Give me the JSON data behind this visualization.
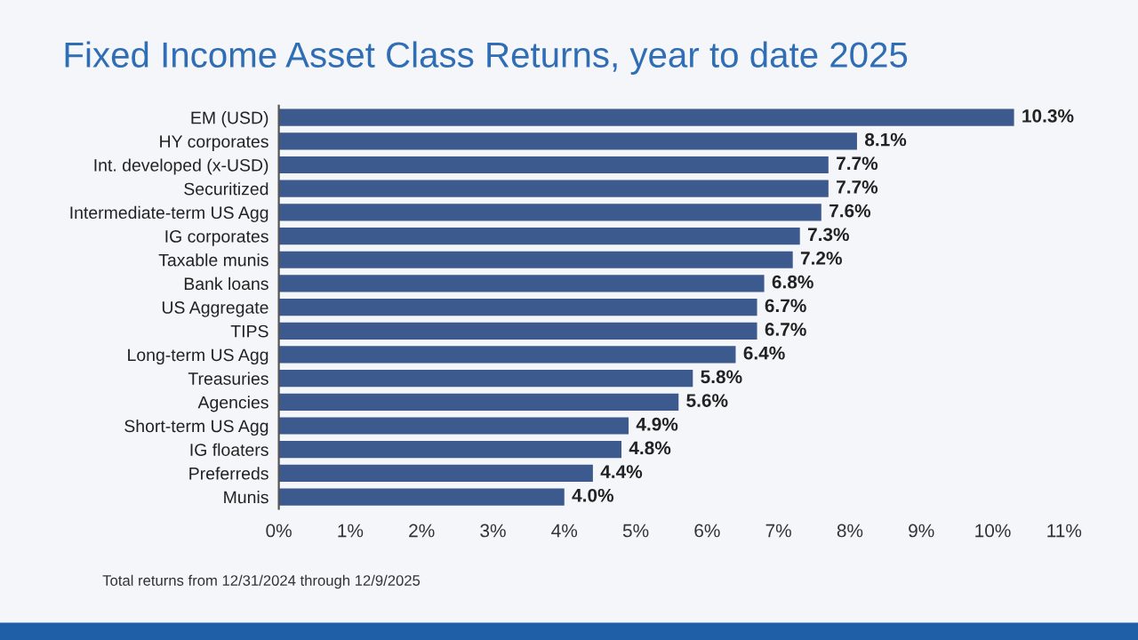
{
  "chart_data": {
    "type": "bar",
    "orientation": "horizontal",
    "title": "Fixed Income Asset Class Returns, year to date 2025",
    "categories": [
      "EM (USD)",
      "HY corporates",
      "Int. developed (x-USD)",
      "Securitized",
      "Intermediate-term US Agg",
      "IG corporates",
      "Taxable munis",
      "Bank loans",
      "US Aggregate",
      "TIPS",
      "Long-term US Agg",
      "Treasuries",
      "Agencies",
      "Short-term US Agg",
      "IG floaters",
      "Preferreds",
      "Munis"
    ],
    "values": [
      10.3,
      8.1,
      7.7,
      7.7,
      7.6,
      7.3,
      7.2,
      6.8,
      6.7,
      6.7,
      6.4,
      5.8,
      5.6,
      4.9,
      4.8,
      4.4,
      4.0
    ],
    "value_labels": [
      "10.3%",
      "8.1%",
      "7.7%",
      "7.7%",
      "7.6%",
      "7.3%",
      "7.2%",
      "6.8%",
      "6.7%",
      "6.7%",
      "6.4%",
      "5.8%",
      "5.6%",
      "4.9%",
      "4.8%",
      "4.4%",
      "4.0%"
    ],
    "color": "#3d5a8e",
    "xlim": [
      0,
      11
    ],
    "xticks": [
      {
        "value": 0,
        "label": "0%"
      },
      {
        "value": 1,
        "label": "1%"
      },
      {
        "value": 2,
        "label": "2%"
      },
      {
        "value": 3,
        "label": "3%"
      },
      {
        "value": 4,
        "label": "4%"
      },
      {
        "value": 5,
        "label": "5%"
      },
      {
        "value": 6,
        "label": "6%"
      },
      {
        "value": 7,
        "label": "7%"
      },
      {
        "value": 8,
        "label": "8%"
      },
      {
        "value": 9,
        "label": "9%"
      },
      {
        "value": 10,
        "label": "10%"
      },
      {
        "value": 11,
        "label": "11%"
      }
    ],
    "grid": false,
    "legend": false,
    "annotations": [
      "Total returns from 12/31/2024 through 12/9/2025"
    ]
  }
}
